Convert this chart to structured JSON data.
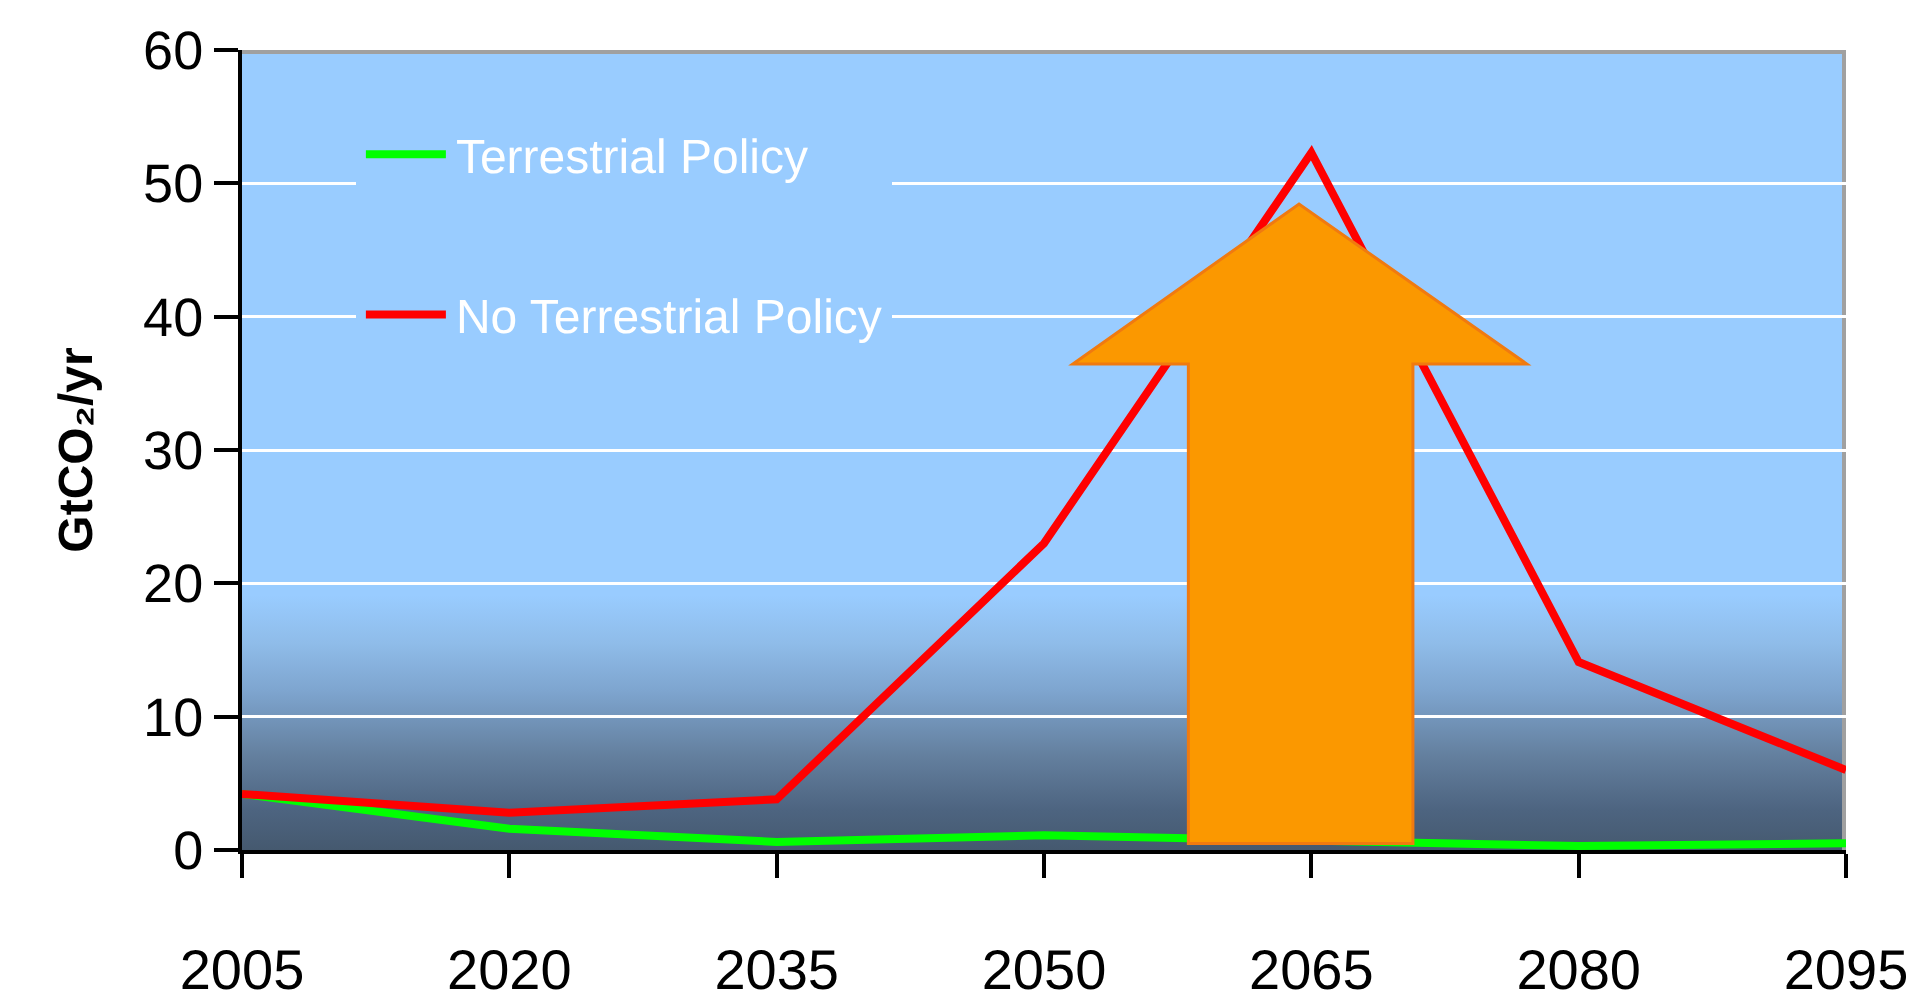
{
  "chart_data": {
    "type": "line",
    "ylabel": "GtCO₂/yr",
    "x": [
      2005,
      2020,
      2035,
      2050,
      2065,
      2080,
      2095
    ],
    "series": [
      {
        "name": "Terrestrial Policy",
        "color": "#00ff00",
        "values": [
          4.2,
          1.6,
          0.6,
          1.1,
          null,
          0.3,
          0.5
        ]
      },
      {
        "name": "No Terrestrial Policy",
        "color": "#ff0000",
        "values": [
          4.2,
          2.8,
          3.8,
          23,
          52.3,
          14.1,
          6
        ]
      }
    ],
    "xlim": [
      2005,
      2095
    ],
    "xticks": [
      2005,
      2020,
      2035,
      2050,
      2065,
      2080,
      2095
    ],
    "ylim": [
      0,
      60
    ],
    "yticks": [
      0,
      10,
      20,
      30,
      40,
      50,
      60
    ],
    "grid": "y",
    "legend": "top left",
    "marker": "none",
    "line_style": "solid"
  }
}
